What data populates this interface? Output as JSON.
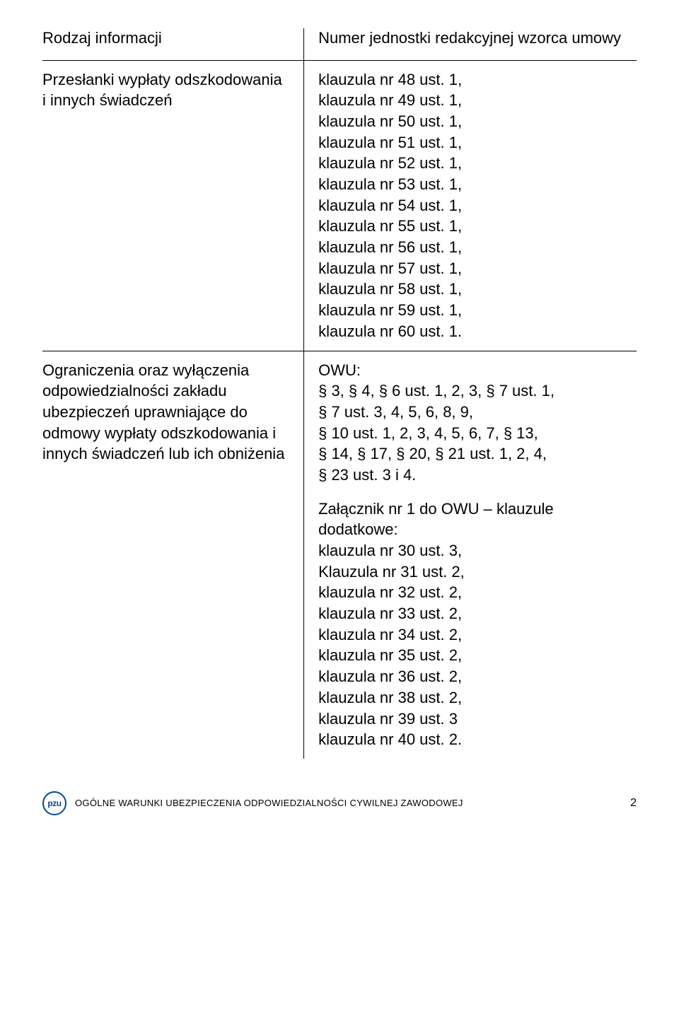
{
  "table": {
    "header": {
      "left": "Rodzaj informacji",
      "right": "Numer jednostki redakcyjnej wzorca umowy"
    },
    "row1": {
      "left": "Przesłanki wypłaty odszkodowania i innych świadczeń",
      "right": "klauzula nr 48 ust. 1,\nklauzula nr 49 ust. 1,\nklauzula nr 50 ust. 1,\nklauzula nr 51 ust. 1,\nklauzula nr 52 ust. 1,\nklauzula nr 53 ust. 1,\nklauzula nr 54 ust. 1,\nklauzula nr 55 ust. 1,\nklauzula nr 56 ust. 1,\nklauzula nr 57 ust. 1,\nklauzula nr 58 ust. 1,\nklauzula nr 59 ust. 1,\nklauzula nr 60 ust. 1."
    },
    "row2": {
      "left": "Ograniczenia oraz wyłączenia odpowiedzialności zakładu ubezpieczeń uprawniające do odmowy wypłaty odszkodowania i innych świadczeń lub ich obniżenia",
      "right_part1": "OWU:\n§ 3, § 4, § 6 ust. 1, 2, 3, § 7 ust. 1,\n§ 7 ust. 3, 4, 5, 6, 8, 9,\n§ 10 ust. 1, 2, 3, 4, 5, 6, 7, § 13,\n§ 14, § 17, § 20, § 21 ust. 1, 2, 4,\n§ 23 ust. 3 i 4.",
      "right_part2": "Załącznik nr 1 do OWU – klauzule dodatkowe:\nklauzula nr 30 ust. 3,\nKlauzula nr 31 ust. 2,\nklauzula nr 32 ust. 2,\nklauzula nr 33 ust. 2,\nklauzula nr 34 ust. 2,\nklauzula nr 35 ust. 2,\nklauzula nr 36 ust. 2,\nklauzula nr 38 ust. 2,\nklauzula nr 39 ust. 3\nklauzula nr 40 ust. 2."
    }
  },
  "footer": {
    "logo": "pzu",
    "text": "OGÓLNE WARUNKI UBEZPIECZENIA ODPOWIEDZIALNOŚCI CYWILNEJ ZAWODOWEJ",
    "page_number": "2"
  }
}
